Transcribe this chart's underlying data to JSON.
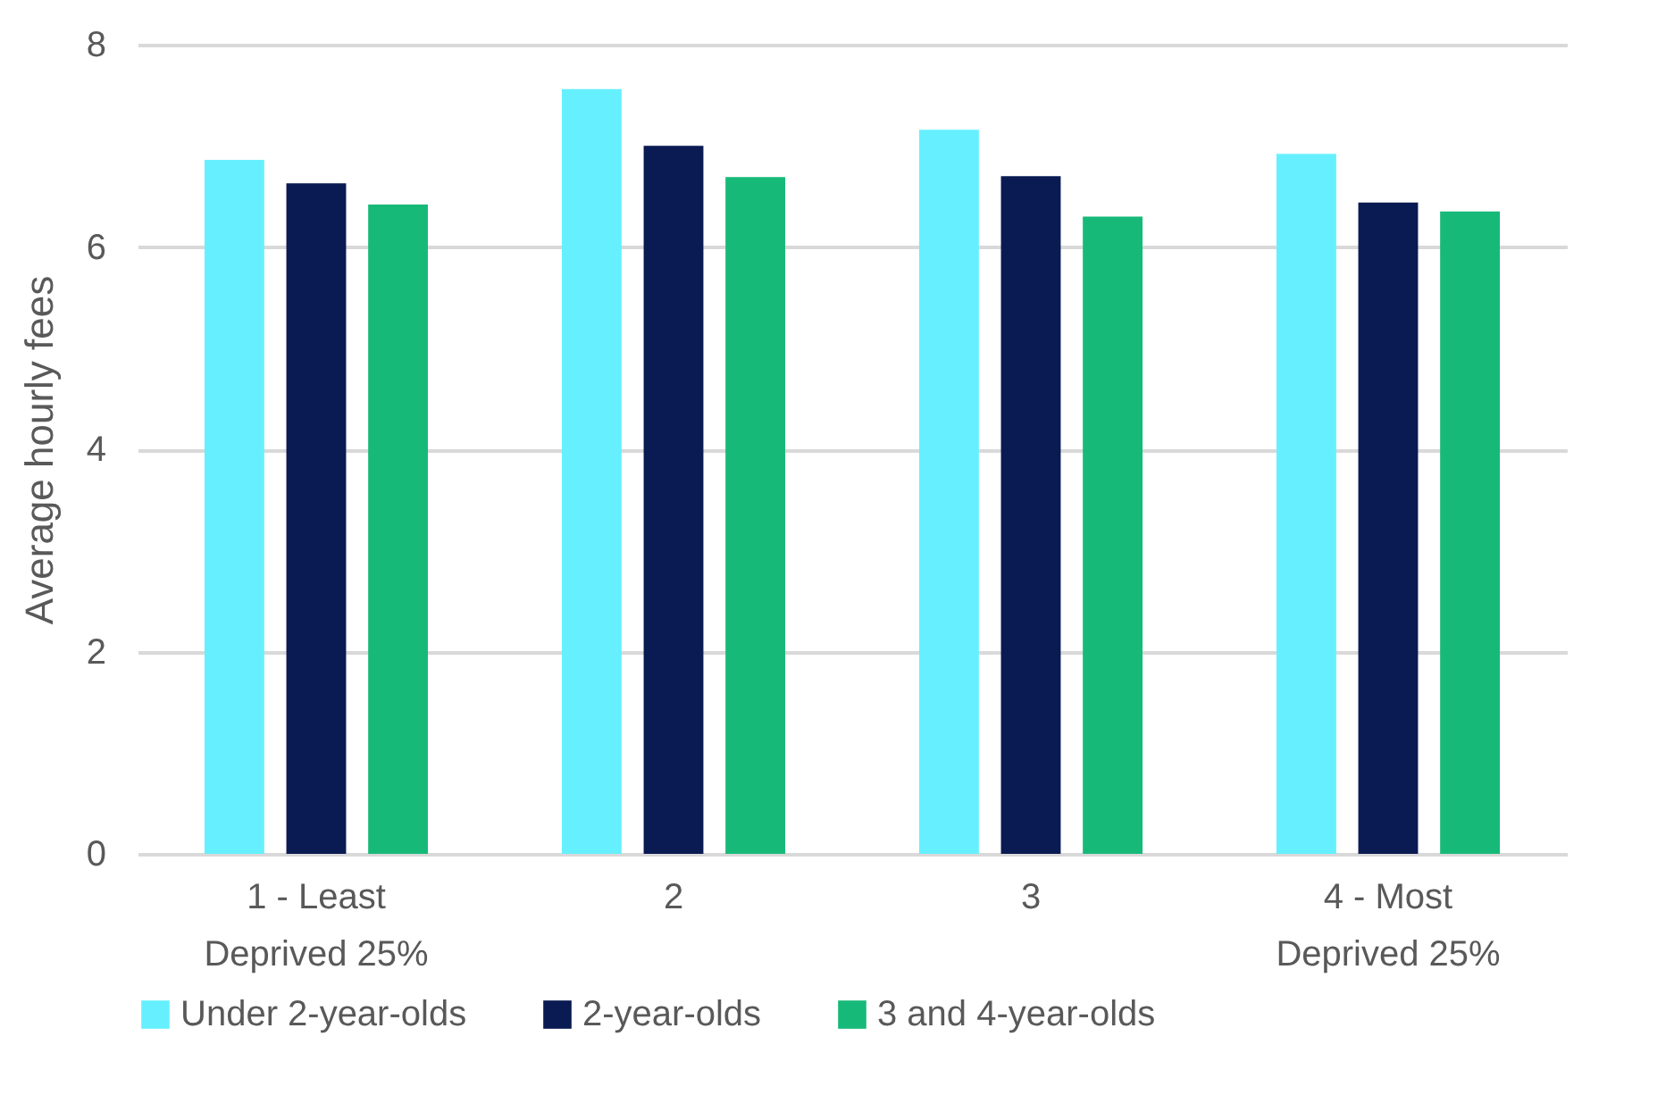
{
  "chart_data": {
    "type": "bar",
    "ylabel": "Average hourly fees",
    "categories": [
      "1 - Least Deprived 25%",
      "2",
      "3",
      "4 - Most Deprived 25%"
    ],
    "series": [
      {
        "name": "Under 2-year-olds",
        "color": "#66f0ff",
        "values": [
          6.86,
          7.56,
          7.16,
          6.92
        ]
      },
      {
        "name": "2-year-olds",
        "color": "#0a1a52",
        "values": [
          6.63,
          7.0,
          6.7,
          6.44
        ]
      },
      {
        "name": "3 and 4-year-olds",
        "color": "#17b978",
        "values": [
          6.42,
          6.69,
          6.3,
          6.35
        ]
      }
    ],
    "ylim": [
      0,
      8
    ],
    "yticks": [
      0,
      2,
      4,
      6,
      8
    ],
    "grid": "y",
    "legend": "bottom"
  }
}
